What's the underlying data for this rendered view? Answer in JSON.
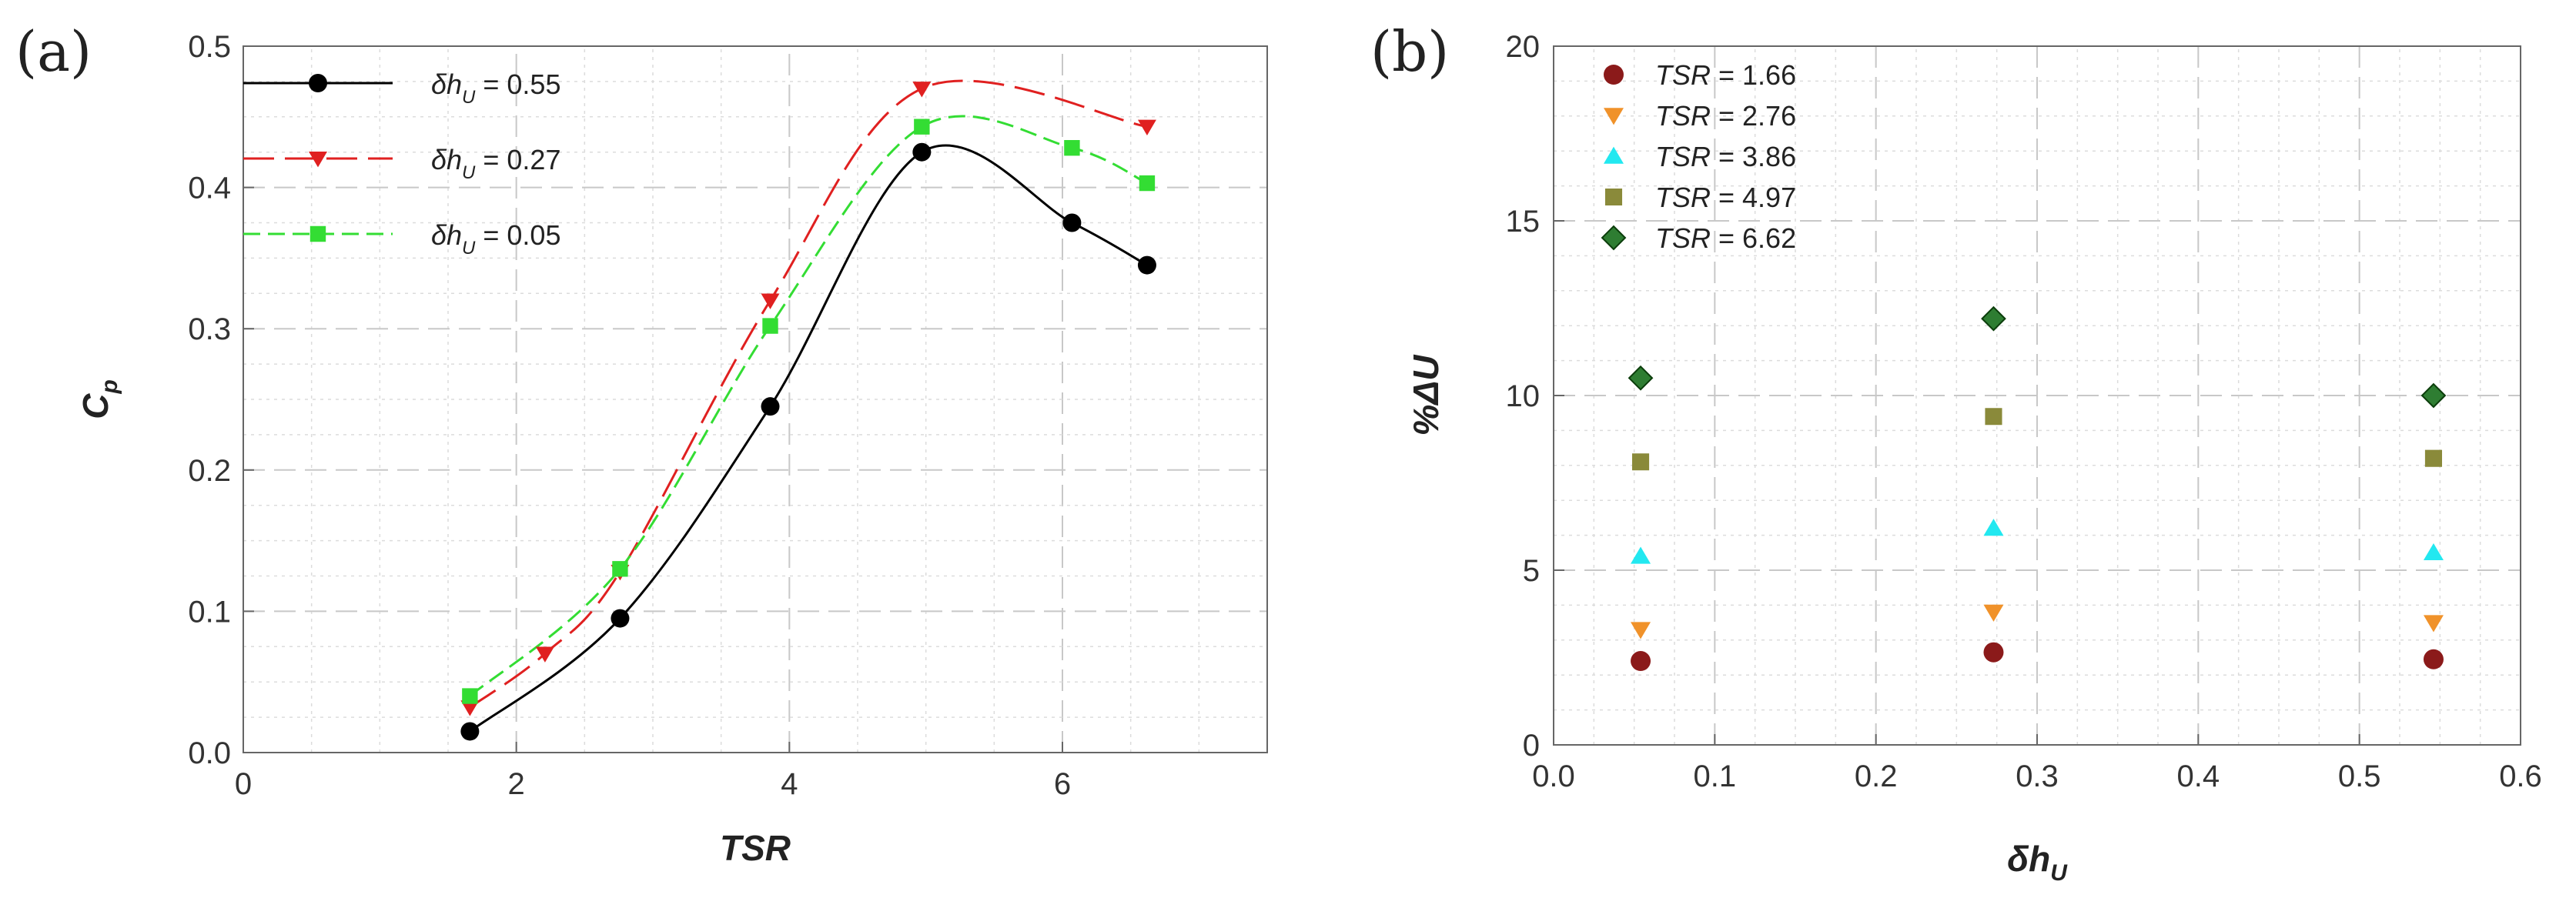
{
  "chart_data": [
    {
      "type": "line",
      "panel_label": "(a)",
      "xlabel": "TSR",
      "ylabel_main": "C",
      "ylabel_sub": "p",
      "xlim": [
        0,
        7.5
      ],
      "ylim": [
        0,
        0.5
      ],
      "xticks": [
        "0",
        "2",
        "4",
        "6"
      ],
      "yticks": [
        "0.0",
        "0.1",
        "0.2",
        "0.3",
        "0.4",
        "0.5"
      ],
      "grid": true,
      "legend_position": "top-left",
      "series": [
        {
          "name": "δh_U = 0.55",
          "legend_main": "δh",
          "legend_sub": "U",
          "legend_value": " = 0.55",
          "color": "#000000",
          "marker": "circle",
          "dash": "solid",
          "x": [
            1.66,
            2.76,
            3.86,
            4.97,
            6.07,
            6.62
          ],
          "y": [
            0.015,
            0.095,
            0.245,
            0.425,
            0.375,
            0.345
          ]
        },
        {
          "name": "δh_U = 0.27",
          "legend_main": "δh",
          "legend_sub": "U",
          "legend_value": " = 0.27",
          "color": "#e02020",
          "marker": "triangle-down",
          "dash": "long-dash",
          "x": [
            1.66,
            2.21,
            2.76,
            3.86,
            4.97,
            6.62
          ],
          "y": [
            0.032,
            0.07,
            0.128,
            0.32,
            0.47,
            0.443
          ]
        },
        {
          "name": "δh_U = 0.05",
          "legend_main": "δh",
          "legend_sub": "U",
          "legend_value": " = 0.05",
          "color": "#33dd33",
          "marker": "square",
          "dash": "dash",
          "x": [
            1.66,
            2.76,
            3.86,
            4.97,
            6.07,
            6.62
          ],
          "y": [
            0.04,
            0.13,
            0.302,
            0.443,
            0.428,
            0.403
          ]
        }
      ]
    },
    {
      "type": "scatter",
      "panel_label": "(b)",
      "xlabel_main": "δh",
      "xlabel_sub": "U",
      "ylabel": "%ΔU",
      "xlim": [
        0,
        0.6
      ],
      "ylim": [
        0,
        20
      ],
      "xticks": [
        "0.0",
        "0.1",
        "0.2",
        "0.3",
        "0.4",
        "0.5",
        "0.6"
      ],
      "yticks": [
        "0",
        "5",
        "10",
        "15",
        "20"
      ],
      "grid": true,
      "legend_position": "top-left",
      "series": [
        {
          "name": "TSR = 1.66",
          "legend_main": "TSR",
          "legend_value": " = 1.66",
          "color": "#8b1a1a",
          "marker": "circle",
          "x": [
            0.054,
            0.273,
            0.546
          ],
          "y": [
            2.4,
            2.65,
            2.45
          ]
        },
        {
          "name": "TSR = 2.76",
          "legend_main": "TSR",
          "legend_value": " = 2.76",
          "color": "#f0922a",
          "marker": "triangle-down",
          "x": [
            0.054,
            0.273,
            0.546
          ],
          "y": [
            3.3,
            3.8,
            3.5
          ]
        },
        {
          "name": "TSR = 3.86",
          "legend_main": "TSR",
          "legend_value": " = 3.86",
          "color": "#22e8f0",
          "marker": "triangle-up",
          "x": [
            0.054,
            0.273,
            0.546
          ],
          "y": [
            5.4,
            6.2,
            5.5
          ]
        },
        {
          "name": "TSR = 4.97",
          "legend_main": "TSR",
          "legend_value": " = 4.97",
          "color": "#8a8a3a",
          "marker": "square",
          "x": [
            0.054,
            0.273,
            0.546
          ],
          "y": [
            8.1,
            9.4,
            8.2
          ]
        },
        {
          "name": "TSR = 6.62",
          "legend_main": "TSR",
          "legend_value": " = 6.62",
          "color": "#2e7d32",
          "marker": "diamond",
          "x": [
            0.054,
            0.273,
            0.546
          ],
          "y": [
            10.5,
            12.2,
            10.0
          ]
        }
      ]
    }
  ]
}
